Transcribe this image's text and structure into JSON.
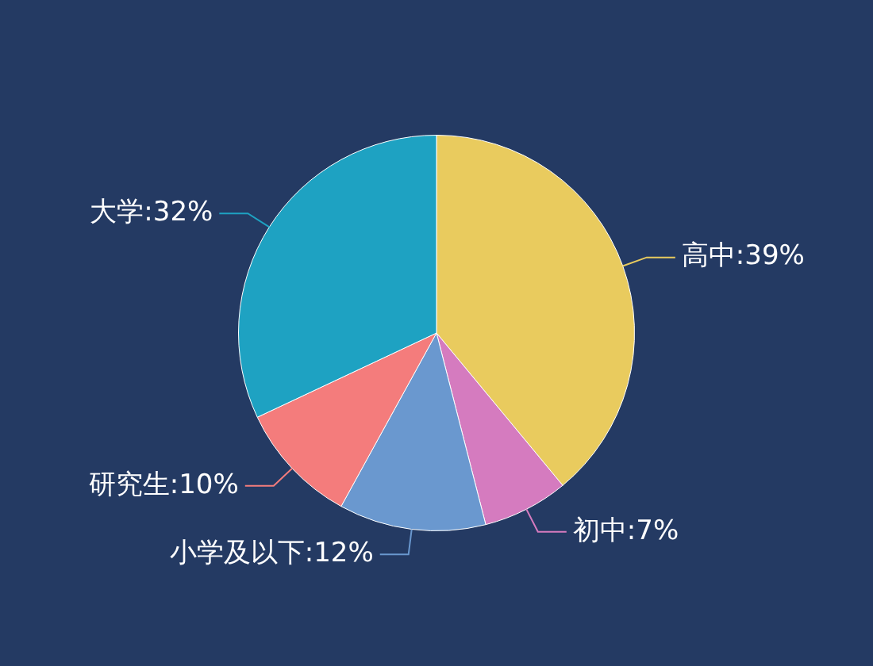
{
  "chart_data": {
    "type": "pie",
    "categories": [
      "高中",
      "初中",
      "小学及以下",
      "研究生",
      "大学"
    ],
    "values": [
      39,
      7,
      12,
      10,
      32
    ],
    "colors": [
      "#e9cb5e",
      "#d57bbf",
      "#6a98cf",
      "#f47c7c",
      "#1ea2c2"
    ],
    "value_labels": [
      "39%",
      "7%",
      "12%",
      "10%",
      "32%"
    ],
    "legend": false
  }
}
